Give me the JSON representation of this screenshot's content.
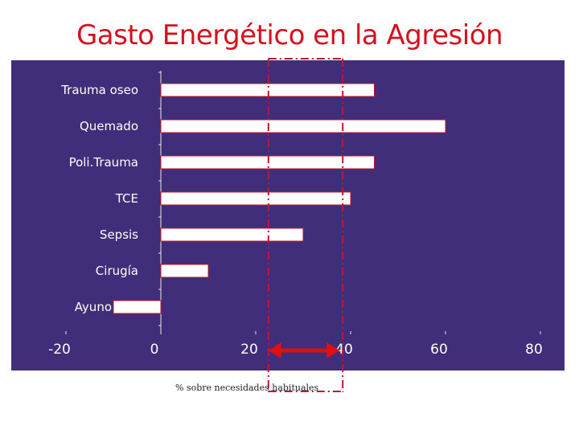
{
  "title": "Gasto Energético en la Agresión",
  "xlabel": "% sobre necesidades habituales",
  "colors": {
    "plot_bg": "#412e7a",
    "bar_fill": "#ffffff",
    "bar_border": "#c0182a",
    "title": "#d4121e",
    "marker_lines": "#c0182a",
    "range_arrow": "#e01010"
  },
  "chart_data": {
    "type": "bar",
    "orientation": "horizontal",
    "categories": [
      "Trauma oseo",
      "Quemado",
      "Poli.Trauma",
      "TCE",
      "Sepsis",
      "Cirugía",
      "Ayuno"
    ],
    "values": [
      45,
      60,
      45,
      40,
      30,
      10,
      -10
    ],
    "xlim": [
      -20,
      80
    ],
    "xticks": [
      "-20",
      "0",
      "20",
      "40",
      "60",
      "80"
    ],
    "grid": false,
    "annotations": {
      "reference_lines": [
        22,
        38
      ],
      "range_arrow": [
        23,
        38
      ]
    }
  }
}
